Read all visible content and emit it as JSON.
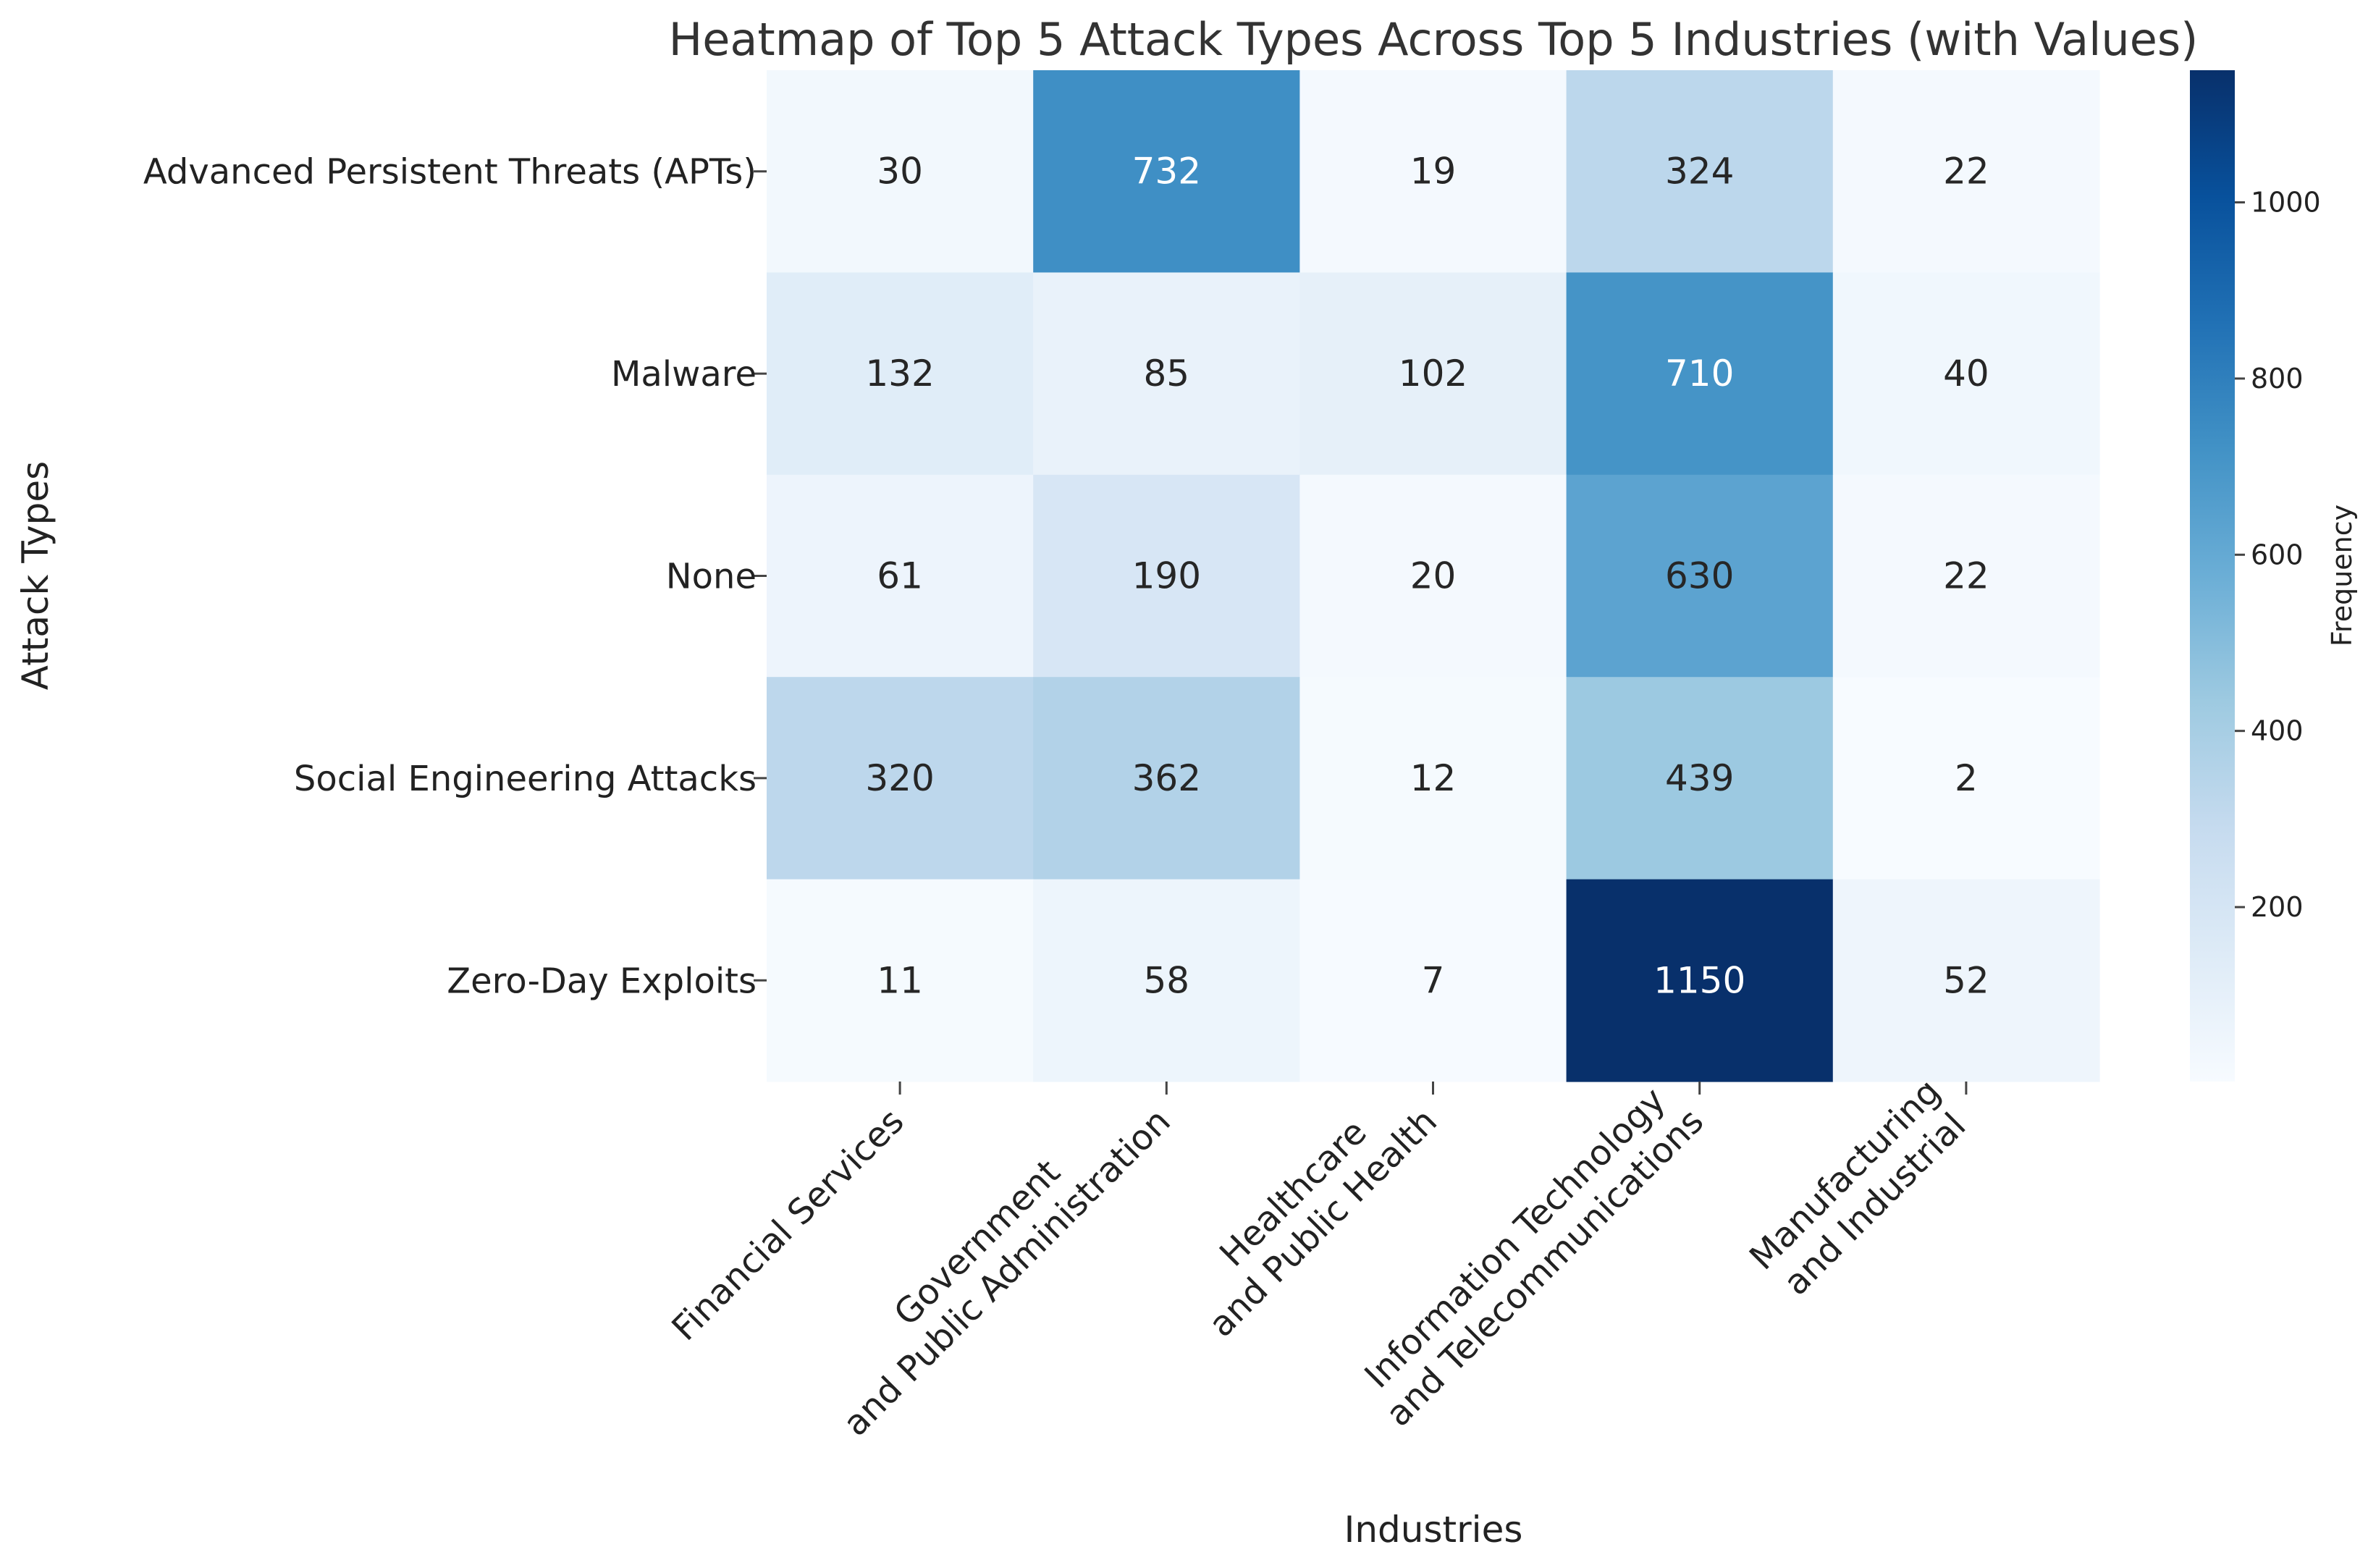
{
  "chart_data": {
    "type": "heatmap",
    "title": "Heatmap of Top 5 Attack Types Across Top 5 Industries (with Values)",
    "xlabel": "Industries",
    "ylabel": "Attack Types",
    "colorbar_label": "Frequency",
    "colormap": "Blues",
    "rows": [
      "Advanced Persistent Threats (APTs)",
      "Malware",
      "None",
      "Social Engineering Attacks",
      "Zero-Day Exploits"
    ],
    "columns": [
      [
        "Financial Services"
      ],
      [
        "Government",
        "and Public Administration"
      ],
      [
        "Healthcare",
        "and Public Health"
      ],
      [
        "Information Technology",
        "and Telecommunications"
      ],
      [
        "Manufacturing",
        "and Industrial"
      ]
    ],
    "values": [
      [
        30,
        732,
        19,
        324,
        22
      ],
      [
        132,
        85,
        102,
        710,
        40
      ],
      [
        61,
        190,
        20,
        630,
        22
      ],
      [
        320,
        362,
        12,
        439,
        2
      ],
      [
        11,
        58,
        7,
        1150,
        52
      ]
    ],
    "value_range": [
      2,
      1150
    ],
    "colorbar_ticks": [
      200,
      400,
      600,
      800,
      1000
    ]
  }
}
